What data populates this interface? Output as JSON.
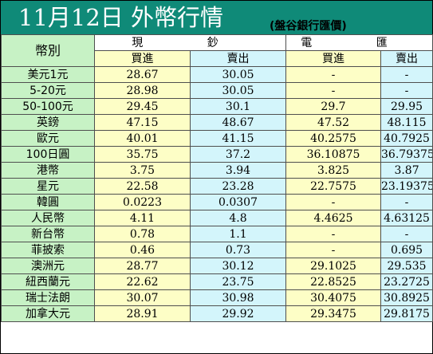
{
  "title": "11月12日 外幣行情",
  "subtitle": "(盤谷銀行匯價)",
  "headers": {
    "currency": "幣別",
    "cash": "現 鈔",
    "telegraphic": "電 匯",
    "buy": "買進",
    "sell": "賣出"
  },
  "colors": {
    "title_bg": "#0f8a78",
    "name_col": "#c7f2c5",
    "cash_col": "#fdfec6",
    "tt_col": "#d3f5fb"
  },
  "rows": [
    {
      "name": "美元1元",
      "cash_buy": "28.67",
      "cash_sell": "30.05",
      "tt_buy": "-",
      "tt_sell": "-"
    },
    {
      "name": "5-20元",
      "cash_buy": "28.98",
      "cash_sell": "30.05",
      "tt_buy": "-",
      "tt_sell": "-"
    },
    {
      "name": "50-100元",
      "cash_buy": "29.45",
      "cash_sell": "30.1",
      "tt_buy": "29.7",
      "tt_sell": "29.95"
    },
    {
      "name": "英鎊",
      "cash_buy": "47.15",
      "cash_sell": "48.67",
      "tt_buy": "47.52",
      "tt_sell": "48.115"
    },
    {
      "name": "歐元",
      "cash_buy": "40.01",
      "cash_sell": "41.15",
      "tt_buy": "40.2575",
      "tt_sell": "40.7925"
    },
    {
      "name": "100日圓",
      "cash_buy": "35.75",
      "cash_sell": "37.2",
      "tt_buy": "36.10875",
      "tt_sell": "36.79375"
    },
    {
      "name": "港幣",
      "cash_buy": "3.75",
      "cash_sell": "3.94",
      "tt_buy": "3.825",
      "tt_sell": "3.87"
    },
    {
      "name": "星元",
      "cash_buy": "22.58",
      "cash_sell": "23.28",
      "tt_buy": "22.7575",
      "tt_sell": "23.19375"
    },
    {
      "name": "韓圓",
      "cash_buy": "0.0223",
      "cash_sell": "0.0307",
      "tt_buy": "-",
      "tt_sell": "-"
    },
    {
      "name": "人民幣",
      "cash_buy": "4.11",
      "cash_sell": "4.8",
      "tt_buy": "4.4625",
      "tt_sell": "4.63125"
    },
    {
      "name": "新台幣",
      "cash_buy": "0.78",
      "cash_sell": "1.1",
      "tt_buy": "-",
      "tt_sell": "-"
    },
    {
      "name": "菲披索",
      "cash_buy": "0.46",
      "cash_sell": "0.73",
      "tt_buy": "-",
      "tt_sell": "0.695"
    },
    {
      "name": "澳洲元",
      "cash_buy": "28.77",
      "cash_sell": "30.12",
      "tt_buy": "29.1025",
      "tt_sell": "29.535"
    },
    {
      "name": "紐西蘭元",
      "cash_buy": "22.62",
      "cash_sell": "23.75",
      "tt_buy": "22.8525",
      "tt_sell": "23.2725"
    },
    {
      "name": "瑞士法朗",
      "cash_buy": "30.07",
      "cash_sell": "30.98",
      "tt_buy": "30.4075",
      "tt_sell": "30.8925"
    },
    {
      "name": "加拿大元",
      "cash_buy": "28.91",
      "cash_sell": "29.92",
      "tt_buy": "29.3475",
      "tt_sell": "29.8175"
    }
  ]
}
